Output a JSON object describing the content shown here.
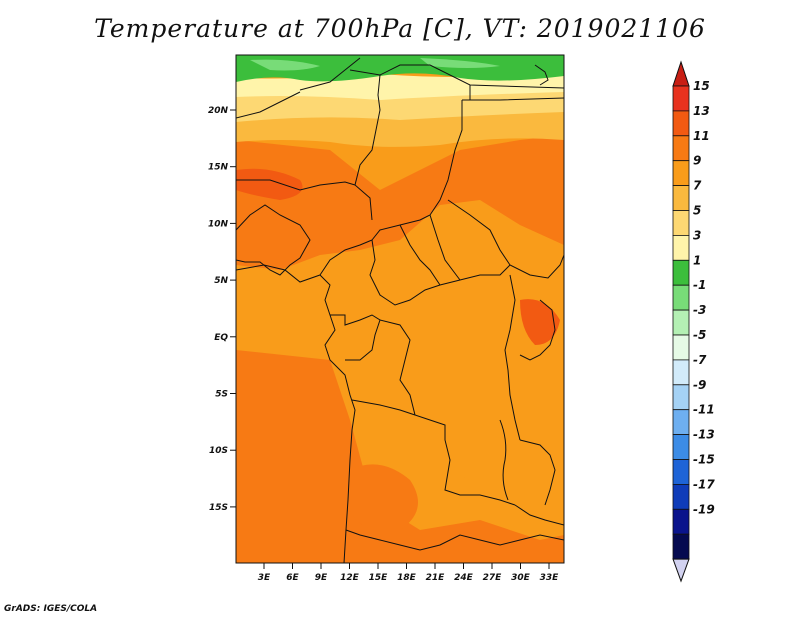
{
  "title": "Temperature at 700hPa [C], VT: 2019021106",
  "footer": "GrADS: IGES/COLA",
  "map": {
    "lat_ticks": [
      "20N",
      "15N",
      "10N",
      "5N",
      "EQ",
      "5S",
      "10S",
      "15S"
    ],
    "lon_ticks": [
      "3E",
      "6E",
      "9E",
      "12E",
      "15E",
      "18E",
      "21E",
      "24E",
      "27E",
      "30E",
      "33E"
    ]
  },
  "colorbar": {
    "labels": [
      "15",
      "13",
      "11",
      "9",
      "7",
      "5",
      "3",
      "1",
      "-1",
      "-3",
      "-5",
      "-7",
      "-9",
      "-11",
      "-13",
      "-15",
      "-17",
      "-19"
    ],
    "colors": [
      "#e8321e",
      "#f25a12",
      "#f77a14",
      "#f99c1a",
      "#fab93e",
      "#fdd873",
      "#fff4aa",
      "#3cbe3c",
      "#78dc78",
      "#b4f0b4",
      "#e6fae6",
      "#d2ebfa",
      "#a5d2f5",
      "#6eaff0",
      "#3c8ce6",
      "#1e64d7",
      "#0f3cb9",
      "#0a148c",
      "#050a50"
    ],
    "over_color": "#c81e14",
    "under_color": "#d2d2f0"
  }
}
